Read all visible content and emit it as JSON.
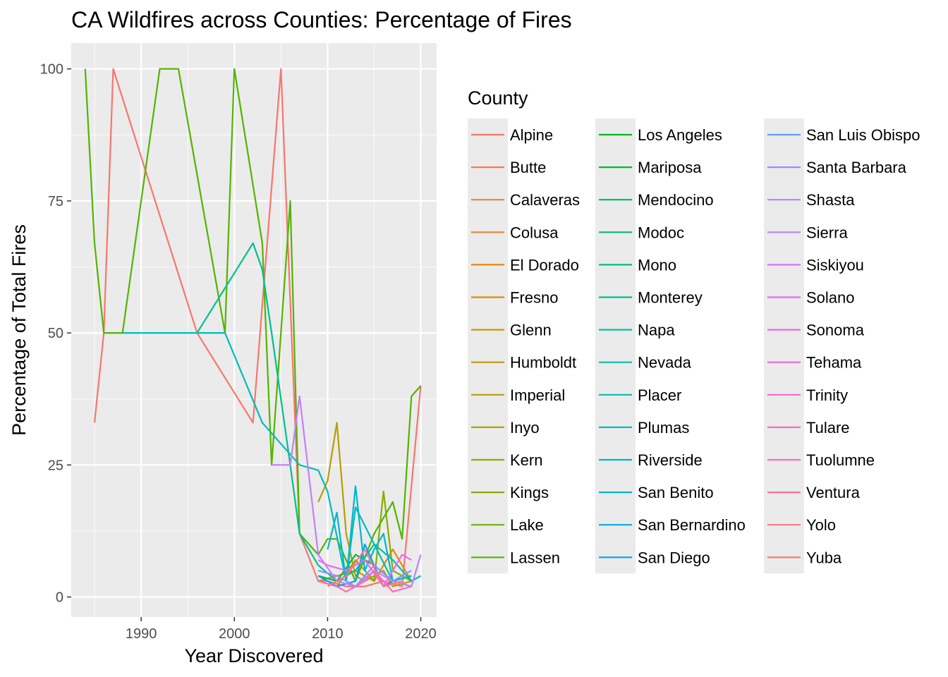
{
  "chart_data": {
    "type": "line",
    "title": "CA Wildfires across Counties: Percentage of Fires",
    "xlabel": "Year Discovered",
    "ylabel": "Percentage of Total Fires",
    "xlim": [
      1982.5,
      2021.7
    ],
    "ylim": [
      -3.8,
      104.9
    ],
    "x_ticks": [
      1990,
      2000,
      2010,
      2020
    ],
    "x_minor_ticks": [
      1985,
      1995,
      2005,
      2015
    ],
    "y_ticks": [
      0,
      25,
      50,
      75,
      100
    ],
    "y_minor_ticks": [
      12.5,
      37.5,
      62.5,
      87.5
    ],
    "grid": true,
    "legend_title": "County",
    "legend_position": "right",
    "counties": [
      "Alpine",
      "Butte",
      "Calaveras",
      "Colusa",
      "El Dorado",
      "Fresno",
      "Glenn",
      "Humboldt",
      "Imperial",
      "Inyo",
      "Kern",
      "Kings",
      "Lake",
      "Lassen",
      "Los Angeles",
      "Mariposa",
      "Mendocino",
      "Modoc",
      "Mono",
      "Monterey",
      "Napa",
      "Nevada",
      "Placer",
      "Plumas",
      "Riverside",
      "San Benito",
      "San Bernardino",
      "San Diego",
      "San Luis Obispo",
      "Santa Barbara",
      "Shasta",
      "Sierra",
      "Siskiyou",
      "Solano",
      "Sonoma",
      "Tehama",
      "Trinity",
      "Tulare",
      "Tuolumne",
      "Ventura",
      "Yolo",
      "Yuba"
    ],
    "colors": [
      "#F8766D",
      "#F47A5C",
      "#F07F49",
      "#EA8331",
      "#E18A00",
      "#D89000",
      "#CE9600",
      "#C49A00",
      "#B79F00",
      "#A9A400",
      "#9AA800",
      "#88AC00",
      "#72B000",
      "#53B400",
      "#00B81F",
      "#00BA38",
      "#00BC58",
      "#00BE6C",
      "#00BF7D",
      "#00C08D",
      "#00C19C",
      "#00BFAA",
      "#00BDB7",
      "#00BAC4",
      "#00B6D0",
      "#00B1DB",
      "#00ACE6",
      "#00A6F0",
      "#619CFF",
      "#8F91FF",
      "#AC88FF",
      "#C27FFF",
      "#D376FF",
      "#E16EF7",
      "#EB69ED",
      "#F265E1",
      "#F866D2",
      "#FB68C2",
      "#FE6DAF",
      "#FF719B",
      "#FD7587",
      "#F8766D"
    ],
    "series": [
      {
        "name": "Alpine",
        "x": [
          1985,
          1986,
          1987,
          1996,
          2002,
          2005,
          2007,
          2009,
          2010,
          2012,
          2014,
          2016,
          2018,
          2020
        ],
        "y": [
          33,
          50,
          100,
          50,
          33,
          100,
          12,
          3,
          3,
          2,
          2,
          3,
          2,
          40
        ]
      },
      {
        "name": "El Dorado",
        "x": [
          2009,
          2011,
          2013,
          2015,
          2017,
          2019
        ],
        "y": [
          3,
          4,
          5,
          3,
          9,
          3
        ]
      },
      {
        "name": "Imperial",
        "x": [
          2009,
          2010,
          2011,
          2012,
          2013,
          2014,
          2016,
          2017,
          2019
        ],
        "y": [
          18,
          22,
          33,
          12,
          4,
          3,
          5,
          2,
          3
        ]
      },
      {
        "name": "Kings",
        "x": [
          2009,
          2011,
          2013,
          2015,
          2016,
          2017,
          2019
        ],
        "y": [
          3,
          2,
          7,
          3,
          20,
          5,
          3
        ]
      },
      {
        "name": "Lassen",
        "x": [
          1984,
          1985,
          1986,
          1988,
          1992,
          1994,
          1999,
          2000,
          2003,
          2004,
          2006,
          2007,
          2009,
          2010,
          2011,
          2013,
          2015,
          2017,
          2018,
          2019,
          2020
        ],
        "y": [
          100,
          67,
          50,
          50,
          100,
          100,
          50,
          100,
          67,
          25,
          75,
          12,
          8,
          11,
          11,
          3,
          12,
          18,
          11,
          38,
          40
        ]
      },
      {
        "name": "Mariposa",
        "x": [
          2009,
          2011,
          2013,
          2015,
          2017,
          2019
        ],
        "y": [
          4,
          3,
          8,
          6,
          3,
          4
        ]
      },
      {
        "name": "Monterey",
        "x": [
          1996,
          2002,
          2003,
          2004,
          2006,
          2007,
          2009,
          2011,
          2013,
          2015,
          2017,
          2019
        ],
        "y": [
          50,
          67,
          62,
          50,
          25,
          12,
          6,
          3,
          5,
          10,
          3,
          2
        ]
      },
      {
        "name": "Placer",
        "x": [
          1988,
          1996,
          1999,
          2003,
          2007,
          2009,
          2010,
          2012,
          2013,
          2015,
          2017,
          2019,
          2020
        ],
        "y": [
          50,
          50,
          50,
          33,
          25,
          24,
          20,
          3,
          17,
          10,
          7,
          3,
          4
        ]
      },
      {
        "name": "Riverside",
        "x": [
          2010,
          2011,
          2012,
          2013,
          2014,
          2015,
          2016,
          2017,
          2019
        ],
        "y": [
          9,
          16,
          3,
          21,
          5,
          9,
          12,
          3,
          4
        ]
      },
      {
        "name": "San Diego",
        "x": [
          2009,
          2010,
          2011,
          2013,
          2014,
          2016,
          2018
        ],
        "y": [
          4,
          3,
          2,
          3,
          10,
          2,
          4
        ]
      },
      {
        "name": "Santa Barbara",
        "x": [
          2009,
          2011,
          2013,
          2015,
          2017,
          2019
        ],
        "y": [
          5,
          4,
          2,
          6,
          3,
          5
        ]
      },
      {
        "name": "Sierra",
        "x": [
          2004,
          2006,
          2007,
          2009,
          2011,
          2013,
          2015,
          2017,
          2019,
          2020
        ],
        "y": [
          25,
          25,
          38,
          8,
          3,
          2,
          5,
          3,
          2,
          8
        ]
      },
      {
        "name": "Sonoma",
        "x": [
          2009,
          2010,
          2012,
          2014,
          2016,
          2018,
          2019
        ],
        "y": [
          7,
          6,
          5,
          7,
          2,
          8,
          7
        ]
      },
      {
        "name": "Tulare",
        "x": [
          2009,
          2011,
          2012,
          2014,
          2015,
          2017,
          2019
        ],
        "y": [
          3,
          2,
          1,
          3,
          5,
          1,
          2
        ]
      },
      {
        "name": "Yolo",
        "x": [
          2010,
          2012,
          2014,
          2016,
          2018
        ],
        "y": [
          2,
          4,
          9,
          2,
          3
        ]
      }
    ]
  }
}
